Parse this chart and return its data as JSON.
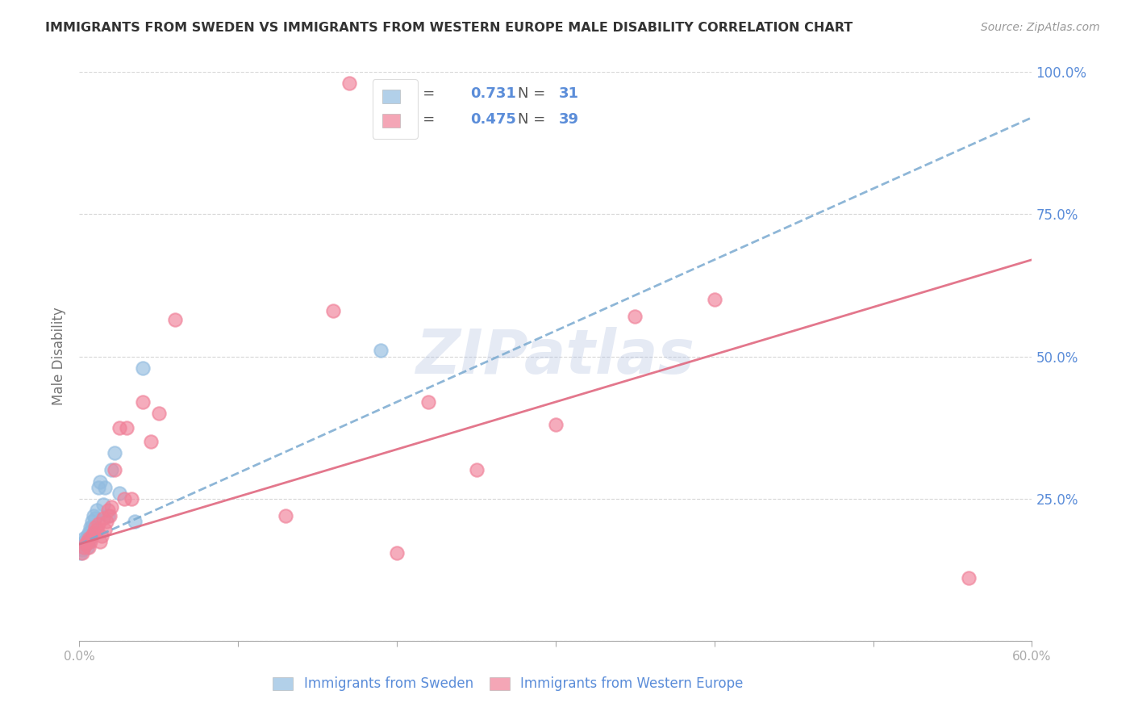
{
  "title": "IMMIGRANTS FROM SWEDEN VS IMMIGRANTS FROM WESTERN EUROPE MALE DISABILITY CORRELATION CHART",
  "source": "Source: ZipAtlas.com",
  "ylabel": "Male Disability",
  "xlim": [
    0.0,
    0.6
  ],
  "ylim": [
    0.0,
    1.0
  ],
  "sweden_R": 0.731,
  "sweden_N": 31,
  "western_europe_R": 0.475,
  "western_europe_N": 39,
  "sweden_color": "#92bce0",
  "western_europe_color": "#f08098",
  "sweden_trend_color": "#7aaad0",
  "western_europe_trend_color": "#e06880",
  "background_color": "#ffffff",
  "grid_color": "#cccccc",
  "title_color": "#333333",
  "right_axis_color": "#5b8dd9",
  "watermark": "ZIPatlas",
  "watermark_color": "#aabbdd",
  "sweden_x": [
    0.001,
    0.002,
    0.002,
    0.003,
    0.003,
    0.003,
    0.004,
    0.004,
    0.005,
    0.005,
    0.005,
    0.006,
    0.006,
    0.007,
    0.007,
    0.008,
    0.008,
    0.009,
    0.01,
    0.011,
    0.012,
    0.013,
    0.015,
    0.016,
    0.018,
    0.02,
    0.022,
    0.025,
    0.035,
    0.04,
    0.19
  ],
  "sweden_y": [
    0.155,
    0.17,
    0.16,
    0.175,
    0.165,
    0.18,
    0.17,
    0.175,
    0.18,
    0.165,
    0.185,
    0.19,
    0.175,
    0.2,
    0.185,
    0.21,
    0.2,
    0.22,
    0.215,
    0.23,
    0.27,
    0.28,
    0.24,
    0.27,
    0.22,
    0.3,
    0.33,
    0.26,
    0.21,
    0.48,
    0.51
  ],
  "western_europe_x": [
    0.002,
    0.003,
    0.004,
    0.005,
    0.006,
    0.006,
    0.007,
    0.008,
    0.009,
    0.01,
    0.011,
    0.012,
    0.013,
    0.014,
    0.015,
    0.016,
    0.017,
    0.018,
    0.019,
    0.02,
    0.022,
    0.025,
    0.028,
    0.03,
    0.033,
    0.04,
    0.045,
    0.05,
    0.06,
    0.13,
    0.16,
    0.17,
    0.2,
    0.22,
    0.25,
    0.3,
    0.35,
    0.4,
    0.56
  ],
  "western_europe_y": [
    0.155,
    0.165,
    0.17,
    0.175,
    0.165,
    0.18,
    0.175,
    0.185,
    0.19,
    0.2,
    0.195,
    0.205,
    0.175,
    0.185,
    0.215,
    0.195,
    0.21,
    0.23,
    0.22,
    0.235,
    0.3,
    0.375,
    0.25,
    0.375,
    0.25,
    0.42,
    0.35,
    0.4,
    0.565,
    0.22,
    0.58,
    0.98,
    0.155,
    0.42,
    0.3,
    0.38,
    0.57,
    0.6,
    0.11
  ],
  "sw_trend_x0": 0.0,
  "sw_trend_y0": 0.17,
  "sw_trend_x1": 0.6,
  "sw_trend_y1": 0.92,
  "we_trend_x0": 0.0,
  "we_trend_y0": 0.17,
  "we_trend_x1": 0.6,
  "we_trend_y1": 0.67
}
